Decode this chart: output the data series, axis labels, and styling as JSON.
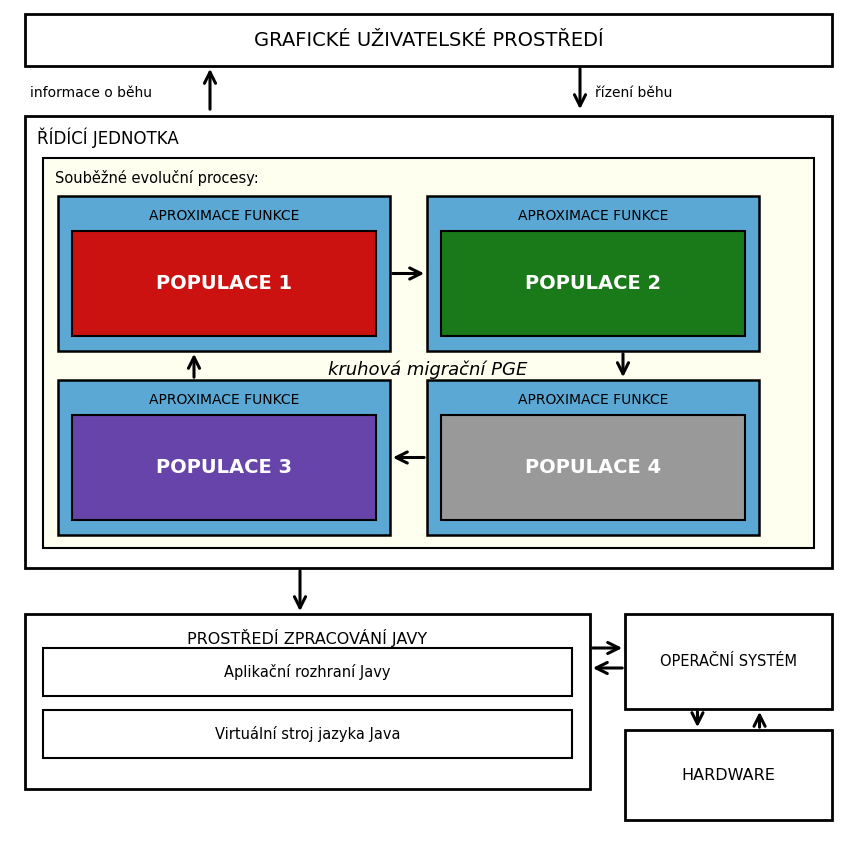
{
  "bg_color": "#ffffff",
  "box_outline": "#000000",
  "yellow_bg": "#fffff0",
  "blue_bg": "#5ba8d4",
  "red_pop": "#cc1111",
  "green_pop": "#1a7a1a",
  "purple_pop": "#6644aa",
  "gray_pop": "#999999",
  "text_white": "#ffffff",
  "text_black": "#000000",
  "label_gui": "GRAFICKÉ UŽIVATELSKÉ PROSTŘEDÍ",
  "label_aproximace": "APROXIMACE FUNKCE",
  "label_pop1": "POPULACE 1",
  "label_pop2": "POPULACE 2",
  "label_pop3": "POPULACE 3",
  "label_pop4": "POPULACE 4",
  "label_ridici": "ŘÍDÍCÍ JEDNOTKA",
  "label_soubezne": "Souběžné evoluční procesy:",
  "label_kruhova": "kruhová migrační PGE",
  "label_info": "informace o běhu",
  "label_rizeni": "řízení běhu",
  "label_prostredi": "PROSTŘEDÍ ZPRACOVÁNÍ JAVY",
  "label_aplikacni": "Aplikační rozhraní Javy",
  "label_virtualni": "Virtuální stroj jazyka Java",
  "label_operacni": "OPERAČNÍ SYSTÉM",
  "label_hardware": "HARDWARE"
}
